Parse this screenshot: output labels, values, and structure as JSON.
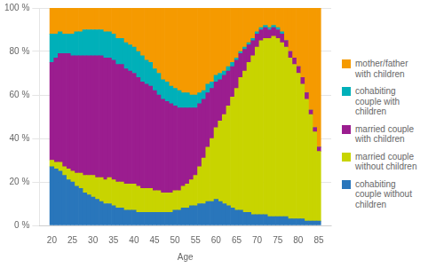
{
  "chart_data": {
    "type": "bar",
    "stacked": true,
    "xlabel": "Age",
    "x": [
      20,
      21,
      22,
      23,
      24,
      25,
      26,
      27,
      28,
      29,
      30,
      31,
      32,
      33,
      34,
      35,
      36,
      37,
      38,
      39,
      40,
      41,
      42,
      43,
      44,
      45,
      46,
      47,
      48,
      49,
      50,
      51,
      52,
      53,
      54,
      55,
      56,
      57,
      58,
      59,
      60,
      61,
      62,
      63,
      64,
      65,
      66,
      67,
      68,
      69,
      70,
      71,
      72,
      73,
      74,
      75,
      76,
      77,
      78,
      79,
      80,
      81,
      82,
      83,
      84,
      85
    ],
    "xlim": [
      19.5,
      85.5
    ],
    "xticks": [
      20,
      25,
      30,
      35,
      40,
      45,
      50,
      55,
      60,
      65,
      70,
      75,
      80,
      85
    ],
    "ylim": [
      0,
      100
    ],
    "yticks": [
      {
        "value": 0,
        "label": "0 %"
      },
      {
        "value": 20,
        "label": "20 %"
      },
      {
        "value": 40,
        "label": "40 %"
      },
      {
        "value": 60,
        "label": "60 %"
      },
      {
        "value": 80,
        "label": "80 %"
      },
      {
        "value": 100,
        "label": "100 %"
      }
    ],
    "grid": "y",
    "legend": "right",
    "series": [
      {
        "name": "cohabiting\ncouple without\nchildren",
        "color": "#2976bb",
        "values": [
          27,
          26,
          25,
          23,
          21,
          20,
          18,
          17,
          15,
          14,
          13,
          12,
          11,
          10,
          10,
          9,
          8,
          8,
          7,
          7,
          7,
          6,
          6,
          6,
          6,
          6,
          6,
          6,
          6,
          6,
          7,
          7,
          8,
          8,
          9,
          9,
          10,
          10,
          11,
          11,
          12,
          11,
          10,
          9,
          8,
          7,
          7,
          6,
          6,
          5,
          5,
          5,
          5,
          4,
          4,
          4,
          4,
          4,
          3,
          3,
          3,
          3,
          2,
          2,
          2,
          2
        ]
      },
      {
        "name": "married couple\nwithout children",
        "color": "#c8d400",
        "values": [
          3,
          3,
          4,
          4,
          5,
          5,
          6,
          7,
          8,
          9,
          10,
          10,
          11,
          11,
          12,
          12,
          12,
          12,
          12,
          12,
          12,
          12,
          11,
          11,
          11,
          10,
          10,
          9,
          9,
          9,
          9,
          9,
          10,
          11,
          12,
          14,
          17,
          21,
          25,
          29,
          33,
          37,
          41,
          46,
          51,
          56,
          61,
          65,
          69,
          73,
          77,
          80,
          81,
          82,
          83,
          82,
          80,
          78,
          74,
          71,
          67,
          62,
          56,
          49,
          41,
          32
        ]
      },
      {
        "name": "married couple\nwith children",
        "color": "#9b1d8f",
        "values": [
          45,
          48,
          50,
          52,
          53,
          53,
          54,
          54,
          55,
          55,
          55,
          56,
          56,
          56,
          55,
          55,
          54,
          54,
          53,
          52,
          51,
          50,
          49,
          48,
          47,
          46,
          44,
          43,
          42,
          41,
          39,
          38,
          36,
          35,
          33,
          31,
          29,
          27,
          25,
          23,
          21,
          19,
          18,
          16,
          14,
          13,
          11,
          10,
          8,
          7,
          6,
          5,
          5,
          4,
          4,
          4,
          4,
          3,
          3,
          3,
          3,
          3,
          3,
          2,
          2,
          2
        ]
      },
      {
        "name": "cohabiting\ncouple with\nchildren",
        "color": "#00b0b9",
        "values": [
          13,
          11,
          10,
          9,
          9,
          10,
          11,
          11,
          12,
          12,
          12,
          12,
          12,
          12,
          12,
          12,
          12,
          12,
          12,
          12,
          12,
          12,
          12,
          11,
          11,
          10,
          10,
          9,
          9,
          8,
          8,
          8,
          7,
          7,
          6,
          6,
          5,
          4,
          4,
          3,
          3,
          3,
          2,
          2,
          2,
          1,
          1,
          1,
          1,
          1,
          1,
          1,
          1,
          1,
          1,
          1,
          1,
          0,
          0,
          0,
          0,
          0,
          0,
          0,
          0,
          0
        ]
      },
      {
        "name": "mother/father\nwith children",
        "color": "#f59a00",
        "values": [
          12,
          12,
          11,
          12,
          12,
          12,
          11,
          11,
          10,
          10,
          10,
          10,
          10,
          11,
          11,
          12,
          14,
          14,
          16,
          17,
          18,
          20,
          22,
          24,
          25,
          28,
          30,
          33,
          34,
          36,
          37,
          38,
          39,
          39,
          40,
          40,
          39,
          38,
          35,
          34,
          31,
          30,
          29,
          27,
          25,
          23,
          20,
          18,
          16,
          14,
          11,
          9,
          8,
          9,
          8,
          9,
          11,
          15,
          20,
          23,
          27,
          32,
          39,
          47,
          55,
          64
        ]
      }
    ]
  }
}
